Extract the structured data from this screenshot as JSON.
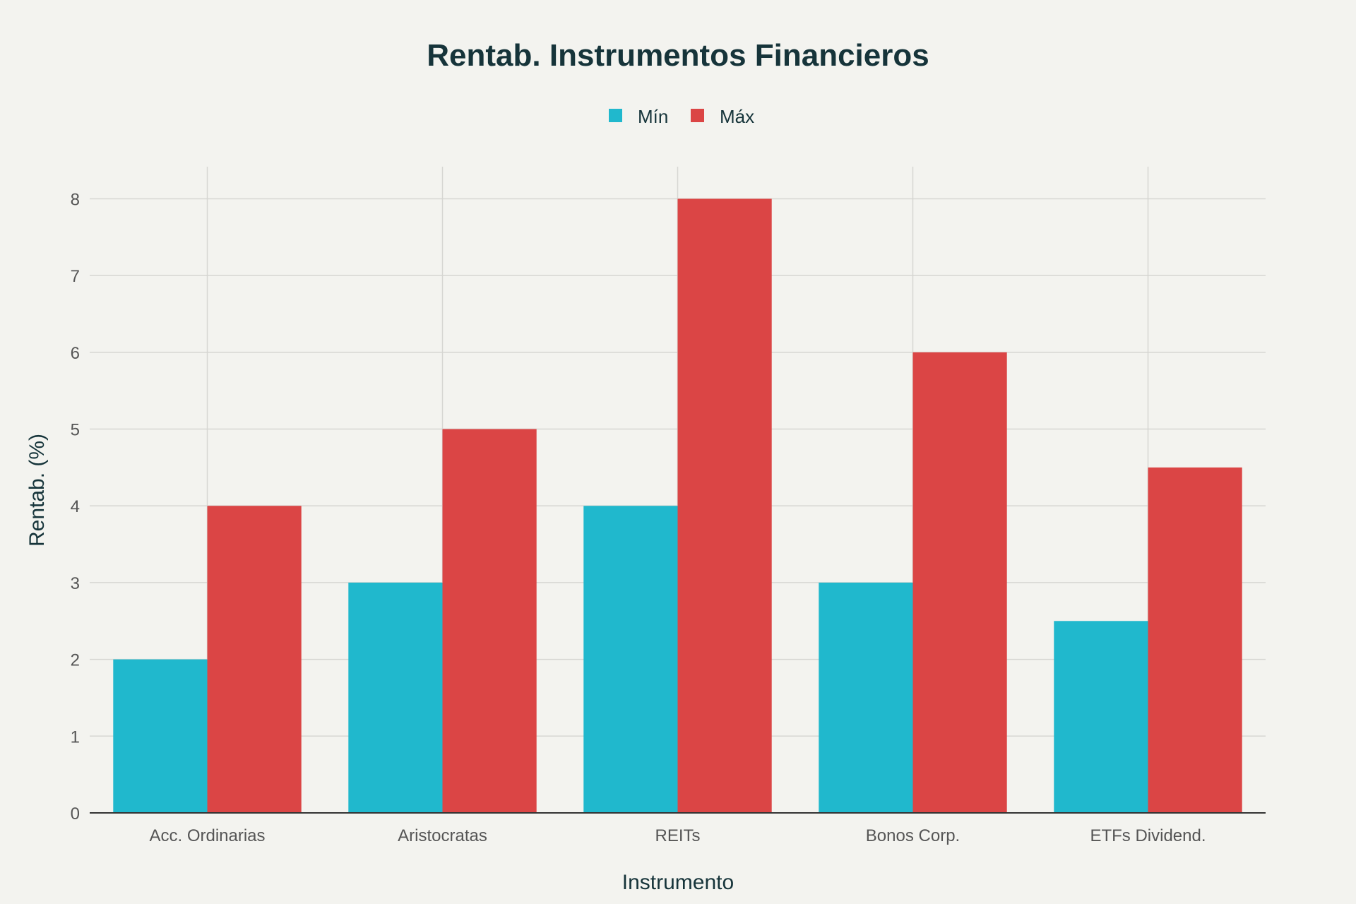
{
  "chart_data": {
    "type": "bar",
    "title": "Rentab. Instrumentos Financieros",
    "xlabel": "Instrumento",
    "ylabel": "Rentab. (%)",
    "categories": [
      "Acc. Ordinarias",
      "Aristocratas",
      "REITs",
      "Bonos Corp.",
      "ETFs Dividend."
    ],
    "series": [
      {
        "name": "Mín",
        "values": [
          2,
          3,
          4,
          3,
          2.5
        ],
        "color": "#20b8cd"
      },
      {
        "name": "Máx",
        "values": [
          4,
          5,
          8,
          6,
          4.5
        ],
        "color": "#db4545"
      }
    ],
    "yticks": [
      "0",
      "1",
      "2",
      "3",
      "4",
      "5",
      "6",
      "7",
      "8"
    ],
    "ylim": [
      0,
      8.4
    ],
    "grid": true,
    "legend_position": "top-center"
  }
}
